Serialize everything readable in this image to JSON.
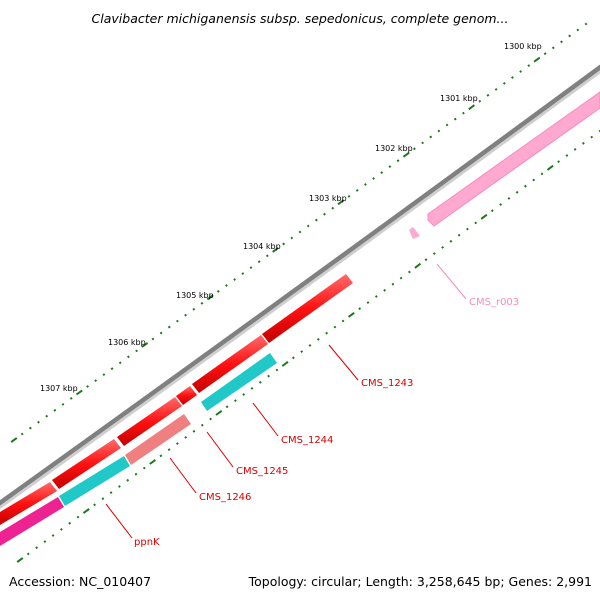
{
  "title": "Clavibacter michiganensis subsp. sepedonicus, complete genom...",
  "ticks": [
    {
      "label": "1300 kbp"
    },
    {
      "label": "1301 kbp"
    },
    {
      "label": "1302 kbp"
    },
    {
      "label": "1303 kbp"
    },
    {
      "label": "1304 kbp"
    },
    {
      "label": "1305 kbp"
    },
    {
      "label": "1306 kbp"
    },
    {
      "label": "1307 kbp"
    }
  ],
  "genes": [
    {
      "label": "CMS_r003",
      "color": "#f58cc0"
    },
    {
      "label": "CMS_1243",
      "color": "#d90000"
    },
    {
      "label": "CMS_1244",
      "color": "#d90000"
    },
    {
      "label": "CMS_1245",
      "color": "#d90000"
    },
    {
      "label": "CMS_1246",
      "color": "#d90000"
    },
    {
      "label": "ppnK",
      "color": "#d90000"
    }
  ],
  "colors": {
    "backbone": "#858585",
    "cds_red": "#ff1111",
    "cds_cyan": "#20c8c8",
    "cds_salmon": "#f08080",
    "cds_magenta": "#ee2290",
    "rna_pink": "#ffa8d0",
    "tick_green": "#1a7a1a"
  },
  "footer": {
    "accession": "Accession: NC_010407",
    "summary": "Topology: circular; Length: 3,258,645 bp; Genes: 2,991"
  }
}
